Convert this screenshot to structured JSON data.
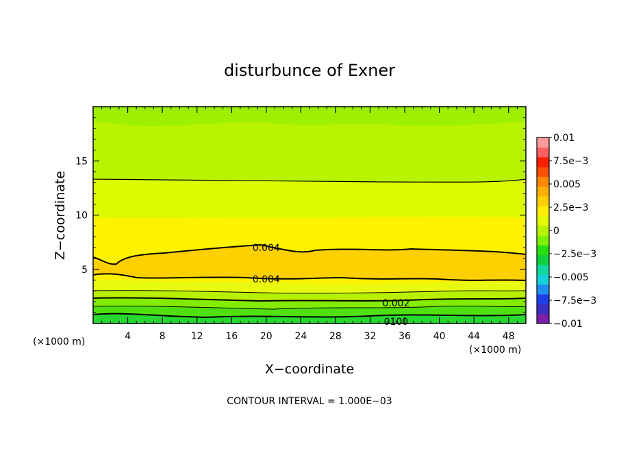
{
  "chart_data": {
    "type": "contour",
    "title": "disturbunce of Exner",
    "xlabel": "X−coordinate",
    "ylabel": "Z−coordinate",
    "x_unit": "(×1000 m)",
    "x_unit_right": "(×1000 m)",
    "xlim": [
      0,
      50
    ],
    "ylim": [
      0,
      20
    ],
    "x_ticks": [
      4,
      8,
      12,
      16,
      20,
      24,
      28,
      32,
      36,
      40,
      44,
      48
    ],
    "x_tick_labels": [
      "4",
      "8",
      "12",
      "16",
      "20",
      "24",
      "28",
      "32",
      "36",
      "40",
      "44",
      "48"
    ],
    "y_ticks": [
      5,
      10,
      15
    ],
    "y_tick_labels": [
      "5",
      "10",
      "15"
    ],
    "colorbar": {
      "levels": [
        -0.01,
        -0.0075,
        -0.005,
        -0.0025,
        0,
        0.0025,
        0.005,
        0.0075,
        0.01
      ],
      "labels": [
        "0.01",
        "7.5e−3",
        "0.005",
        "2.5e−3",
        "0",
        "−2.5e−3",
        "−0.005",
        "−7.5e−3",
        "−0.01"
      ],
      "colors": [
        "#7a1fa8",
        "#3a2fc0",
        "#1e3fe8",
        "#1e8ef0",
        "#18d0d8",
        "#10d8a0",
        "#10d040",
        "#28e010",
        "#7ef000",
        "#b8f400",
        "#e6fa00",
        "#fff000",
        "#ffd000",
        "#ffb000",
        "#ff8800",
        "#ff5000",
        "#ff2000",
        "#ff6060",
        "#ff9a9a"
      ]
    },
    "contour_labels": [
      {
        "text": "0.004",
        "x": 20,
        "y": 7.0
      },
      {
        "text": "0.004",
        "x": 20,
        "y": 4.1
      },
      {
        "text": "0.002",
        "x": 35,
        "y": 1.9
      },
      {
        "text": "0100",
        "x": 35,
        "y": 0.2
      }
    ],
    "contour_interval_text": "CONTOUR INTERVAL = 1.000E−03"
  }
}
